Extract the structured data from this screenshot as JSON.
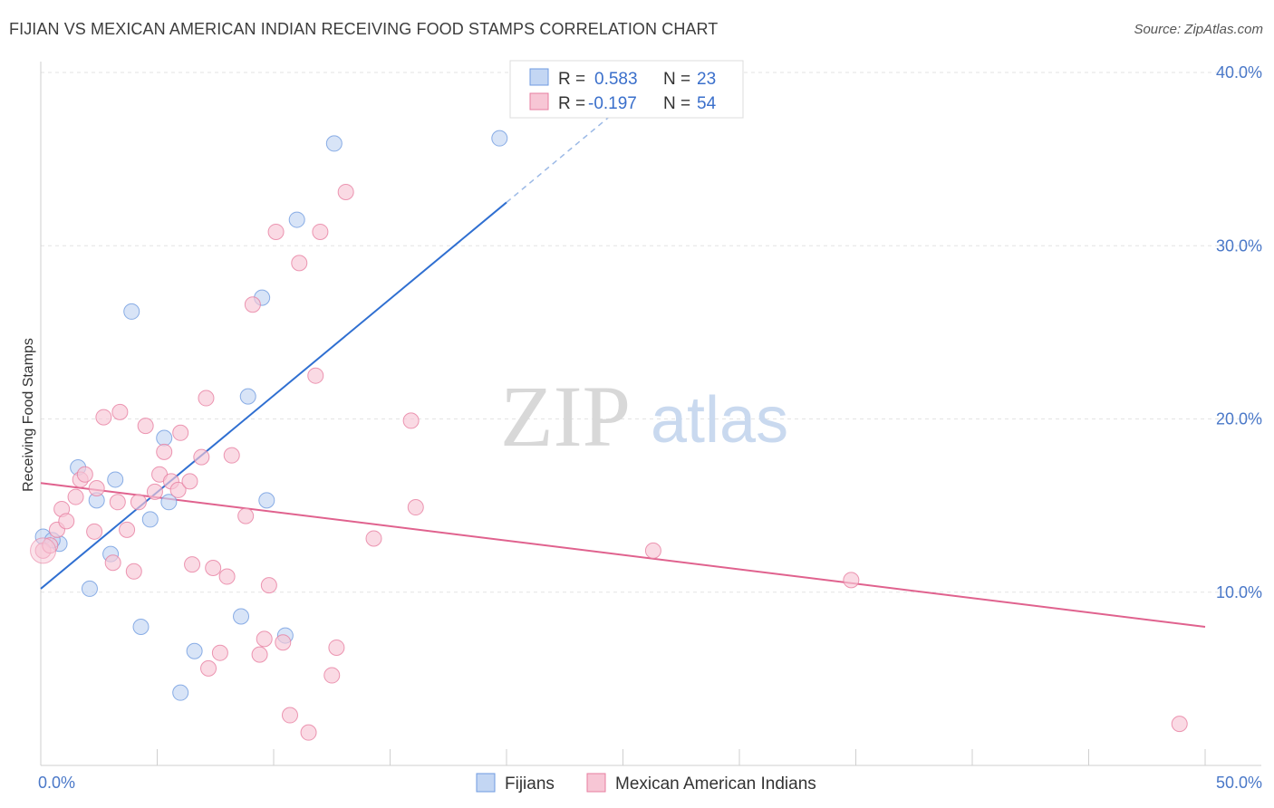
{
  "header": {
    "title": "FIJIAN VS MEXICAN AMERICAN INDIAN RECEIVING FOOD STAMPS CORRELATION CHART",
    "source": "Source: ZipAtlas.com"
  },
  "watermark": {
    "zip": "ZIP",
    "atlas": "atlas"
  },
  "chart_data": {
    "type": "scatter",
    "title": "FIJIAN VS MEXICAN AMERICAN INDIAN RECEIVING FOOD STAMPS CORRELATION CHART",
    "xlabel": "",
    "ylabel": "Receiving Food Stamps",
    "xlim": [
      0,
      50
    ],
    "ylim": [
      0,
      40
    ],
    "x_tick_labels": [
      "0.0%",
      "50.0%"
    ],
    "y_ticks": [
      10,
      20,
      30,
      40
    ],
    "y_tick_labels": [
      "10.0%",
      "20.0%",
      "30.0%",
      "40.0%"
    ],
    "grid": true,
    "legend_position": "top-center",
    "series": [
      {
        "name": "Fijians",
        "color": "#6f9be0",
        "fill": "#c3d6f3",
        "stats": {
          "r_label": "R =",
          "r_value": "0.583",
          "n_label": "N =",
          "n_value": "23"
        },
        "trend": {
          "x0": 0,
          "y0": 10.2,
          "x1": 20,
          "y1": 32.5,
          "dash_to_x": 25,
          "dash_to_y": 38.1
        },
        "points": [
          [
            0.1,
            13.2
          ],
          [
            0.8,
            12.8
          ],
          [
            1.6,
            17.2
          ],
          [
            2.1,
            10.2
          ],
          [
            2.4,
            15.3
          ],
          [
            3.0,
            12.2
          ],
          [
            3.2,
            16.5
          ],
          [
            3.9,
            26.2
          ],
          [
            4.3,
            8.0
          ],
          [
            4.7,
            14.2
          ],
          [
            5.3,
            18.9
          ],
          [
            5.5,
            15.2
          ],
          [
            6.0,
            4.2
          ],
          [
            6.6,
            6.6
          ],
          [
            8.6,
            8.6
          ],
          [
            8.9,
            21.3
          ],
          [
            9.5,
            27.0
          ],
          [
            9.7,
            15.3
          ],
          [
            10.5,
            7.5
          ],
          [
            11.0,
            31.5
          ],
          [
            12.6,
            35.9
          ],
          [
            19.7,
            36.2
          ],
          [
            0.5,
            13.0
          ]
        ]
      },
      {
        "name": "Mexican American Indians",
        "color": "#e77ea0",
        "fill": "#f7c6d5",
        "stats": {
          "r_label": "R =",
          "r_value": "-0.197",
          "n_label": "N =",
          "n_value": "54"
        },
        "trend": {
          "x0": 0,
          "y0": 16.3,
          "x1": 50,
          "y1": 8.0
        },
        "points": [
          [
            0.1,
            12.4
          ],
          [
            0.4,
            12.7
          ],
          [
            0.7,
            13.6
          ],
          [
            0.9,
            14.8
          ],
          [
            1.1,
            14.1
          ],
          [
            1.5,
            15.5
          ],
          [
            1.7,
            16.5
          ],
          [
            1.9,
            16.8
          ],
          [
            2.3,
            13.5
          ],
          [
            2.4,
            16.0
          ],
          [
            2.7,
            20.1
          ],
          [
            3.1,
            11.7
          ],
          [
            3.3,
            15.2
          ],
          [
            3.4,
            20.4
          ],
          [
            3.7,
            13.6
          ],
          [
            4.0,
            11.2
          ],
          [
            4.2,
            15.2
          ],
          [
            4.5,
            19.6
          ],
          [
            4.9,
            15.8
          ],
          [
            5.1,
            16.8
          ],
          [
            5.3,
            18.1
          ],
          [
            5.6,
            16.4
          ],
          [
            5.9,
            15.9
          ],
          [
            6.0,
            19.2
          ],
          [
            6.4,
            16.4
          ],
          [
            6.5,
            11.6
          ],
          [
            6.9,
            17.8
          ],
          [
            7.1,
            21.2
          ],
          [
            7.2,
            5.6
          ],
          [
            7.4,
            11.4
          ],
          [
            7.7,
            6.5
          ],
          [
            8.0,
            10.9
          ],
          [
            8.2,
            17.9
          ],
          [
            8.8,
            14.4
          ],
          [
            9.1,
            26.6
          ],
          [
            9.4,
            6.4
          ],
          [
            9.6,
            7.3
          ],
          [
            9.8,
            10.4
          ],
          [
            10.1,
            30.8
          ],
          [
            10.4,
            7.1
          ],
          [
            10.7,
            2.9
          ],
          [
            11.1,
            29.0
          ],
          [
            11.5,
            1.9
          ],
          [
            11.8,
            22.5
          ],
          [
            12.0,
            30.8
          ],
          [
            12.5,
            5.2
          ],
          [
            12.7,
            6.8
          ],
          [
            13.1,
            33.1
          ],
          [
            14.3,
            13.1
          ],
          [
            15.9,
            19.9
          ],
          [
            16.1,
            14.9
          ],
          [
            26.3,
            12.4
          ],
          [
            34.8,
            10.7
          ],
          [
            48.9,
            2.4
          ]
        ]
      }
    ]
  }
}
